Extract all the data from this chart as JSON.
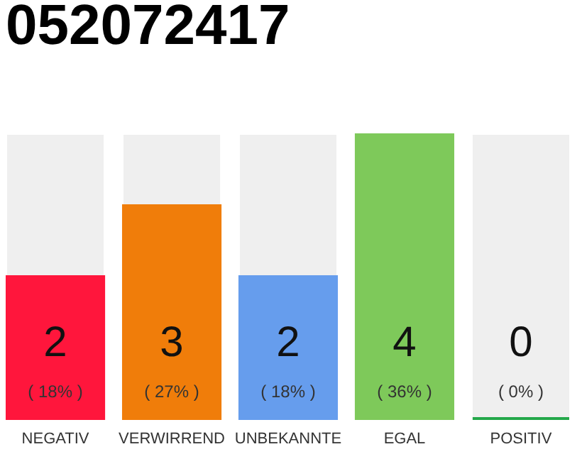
{
  "chart_data": {
    "type": "bar",
    "title": "052072417",
    "categories": [
      "NEGATIV",
      "VERWIRREND",
      "UNBEKANNTE",
      "EGAL",
      "POSITIV"
    ],
    "values": [
      2,
      3,
      2,
      4,
      0
    ],
    "colors": [
      "#ff163c",
      "#f07d0a",
      "#669ded",
      "#7ec95a",
      "#24a84a"
    ],
    "data_labels": true,
    "annotations": [
      "( 18% )",
      "( 27% )",
      "( 18% )",
      "( 36% )",
      "( 0% )"
    ],
    "tick_labels": "x"
  }
}
